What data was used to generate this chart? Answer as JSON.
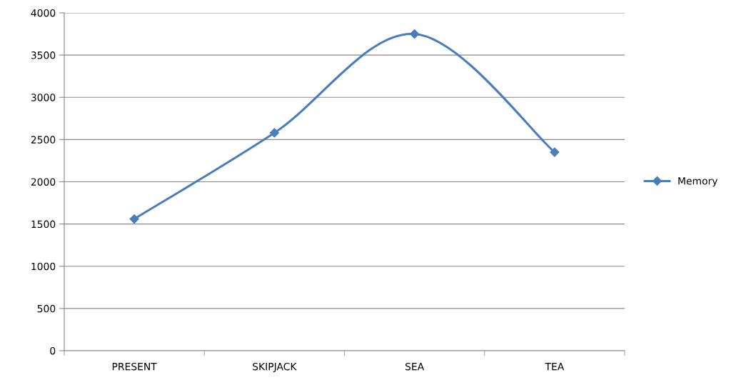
{
  "chart_data": {
    "type": "line",
    "categories": [
      "PRESENT",
      "SKIPJACK",
      "SEA",
      "TEA"
    ],
    "series": [
      {
        "name": "Memory",
        "color": "#4a7ebb",
        "values": [
          1560,
          2580,
          3750,
          2350
        ]
      }
    ],
    "ylim": [
      0,
      4000
    ],
    "yticks": [
      0,
      500,
      1000,
      1500,
      2000,
      2500,
      3000,
      3500,
      4000
    ],
    "grid": "y",
    "legend": "right",
    "marker": "diamond",
    "line_style": "solid"
  }
}
